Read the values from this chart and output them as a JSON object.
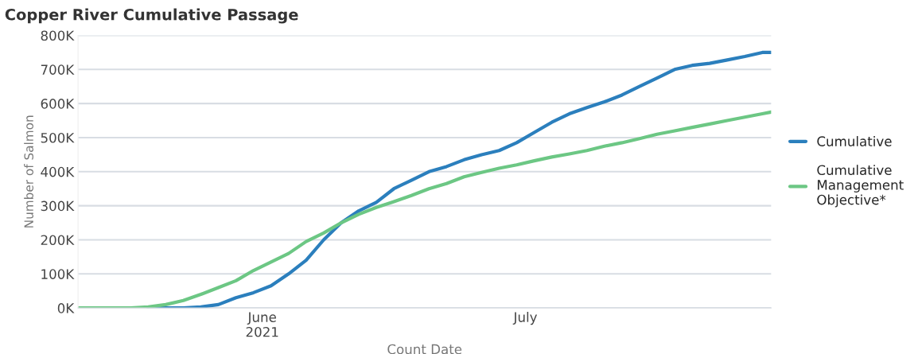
{
  "chart_data": {
    "type": "line",
    "title": "Copper River Cumulative Passage",
    "xlabel": "Count Date",
    "ylabel": "Number of Salmon",
    "x": [
      "2021-05-11",
      "2021-05-13",
      "2021-05-15",
      "2021-05-17",
      "2021-05-19",
      "2021-05-21",
      "2021-05-23",
      "2021-05-25",
      "2021-05-27",
      "2021-05-29",
      "2021-05-31",
      "2021-06-02",
      "2021-06-04",
      "2021-06-06",
      "2021-06-08",
      "2021-06-10",
      "2021-06-12",
      "2021-06-14",
      "2021-06-16",
      "2021-06-18",
      "2021-06-20",
      "2021-06-22",
      "2021-06-24",
      "2021-06-26",
      "2021-06-28",
      "2021-06-30",
      "2021-07-02",
      "2021-07-04",
      "2021-07-06",
      "2021-07-08",
      "2021-07-10",
      "2021-07-12",
      "2021-07-14",
      "2021-07-16",
      "2021-07-18",
      "2021-07-20",
      "2021-07-22",
      "2021-07-24",
      "2021-07-26",
      "2021-07-28",
      "2021-07-29"
    ],
    "series": [
      {
        "name": "Cumulative",
        "color": "#2b7fbd",
        "values": [
          null,
          null,
          null,
          null,
          0,
          0,
          0,
          3000,
          10000,
          30000,
          45000,
          65000,
          100000,
          140000,
          200000,
          250000,
          285000,
          310000,
          350000,
          375000,
          400000,
          415000,
          435000,
          450000,
          462000,
          485000,
          515000,
          545000,
          570000,
          588000,
          605000,
          625000,
          650000,
          675000,
          700000,
          712000,
          718000,
          728000,
          738000,
          750000,
          750000
        ]
      },
      {
        "name": "Cumulative\nManagement\nObjective*",
        "color": "#6cc784",
        "values": [
          0,
          0,
          0,
          0,
          3000,
          10000,
          22000,
          40000,
          60000,
          80000,
          110000,
          135000,
          160000,
          195000,
          220000,
          250000,
          275000,
          295000,
          312000,
          330000,
          350000,
          365000,
          385000,
          398000,
          410000,
          420000,
          432000,
          443000,
          452000,
          462000,
          475000,
          485000,
          497000,
          510000,
          520000,
          530000,
          540000,
          550000,
          560000,
          570000,
          575000
        ]
      }
    ],
    "xlim": [
      "2021-05-11",
      "2021-07-29"
    ],
    "xticks": [
      {
        "value": "2021-06-01",
        "label": "June\n2021"
      },
      {
        "value": "2021-07-01",
        "label": "July"
      }
    ],
    "ylim": [
      0,
      800000
    ],
    "yticks": [
      {
        "value": 0,
        "label": "0K"
      },
      {
        "value": 100000,
        "label": "100K"
      },
      {
        "value": 200000,
        "label": "200K"
      },
      {
        "value": 300000,
        "label": "300K"
      },
      {
        "value": 400000,
        "label": "400K"
      },
      {
        "value": 500000,
        "label": "500K"
      },
      {
        "value": 600000,
        "label": "600K"
      },
      {
        "value": 700000,
        "label": "700K"
      },
      {
        "value": 800000,
        "label": "800K"
      }
    ],
    "grid": "y",
    "legend": "right",
    "marker": "none",
    "line_style": "solid"
  }
}
